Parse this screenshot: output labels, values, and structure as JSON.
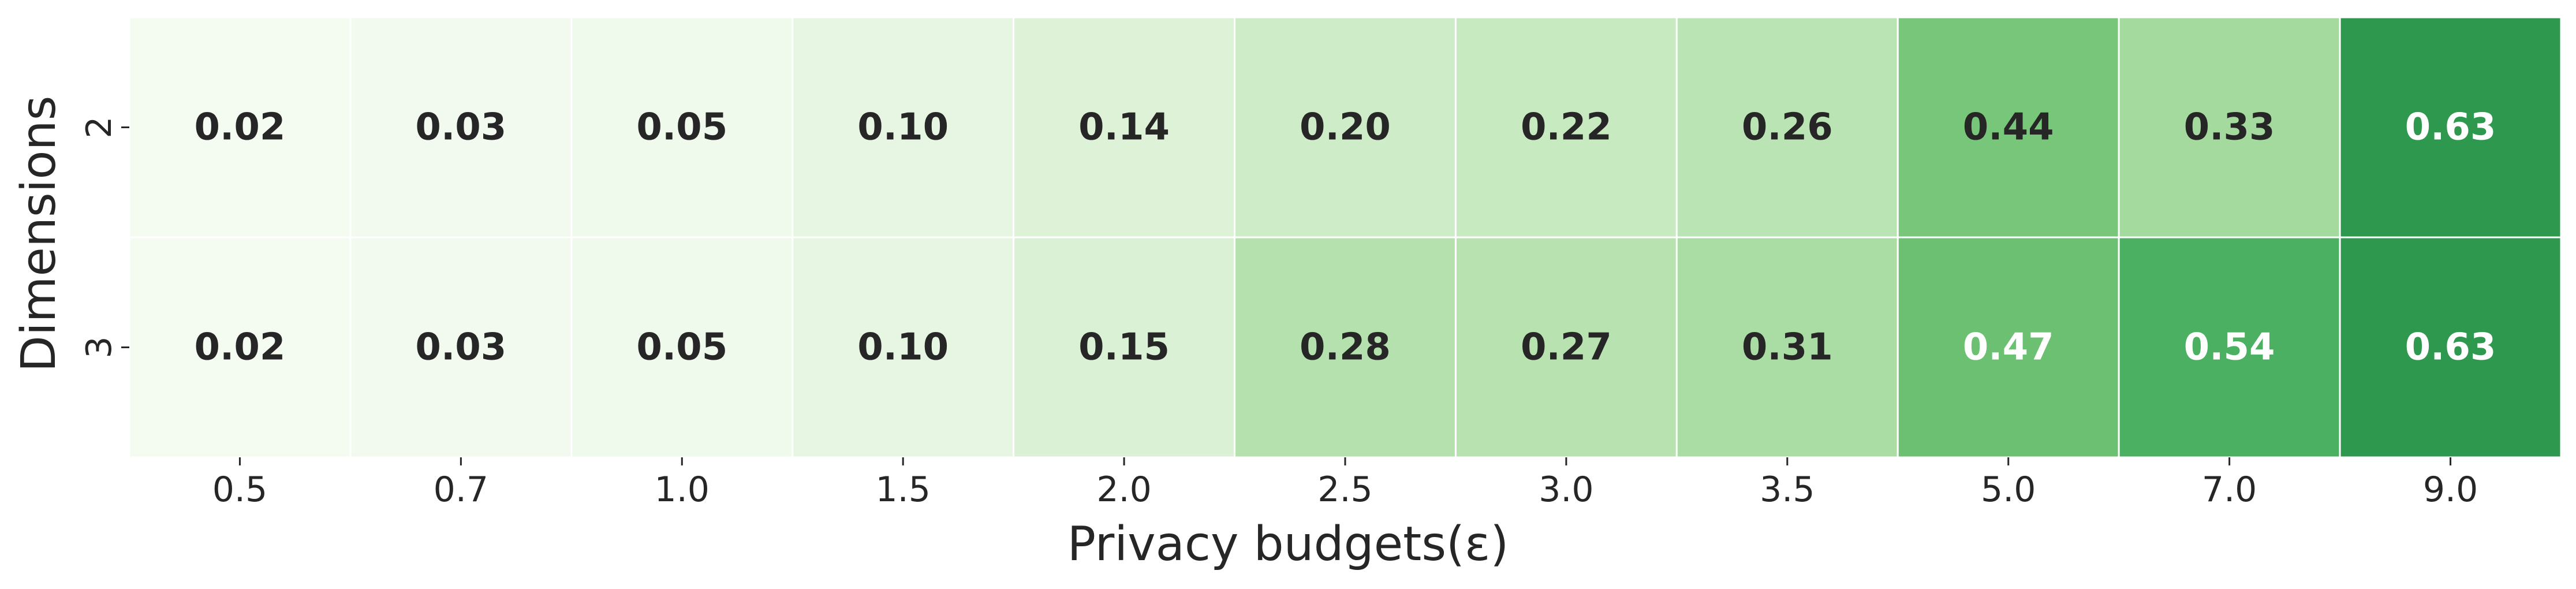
{
  "chart_data": {
    "type": "heatmap",
    "title": "",
    "xlabel": "Privacy budgets(ε)",
    "ylabel": "Dimensions",
    "x_categories": [
      "0.5",
      "0.7",
      "1.0",
      "1.5",
      "2.0",
      "2.5",
      "3.0",
      "3.5",
      "5.0",
      "7.0",
      "9.0"
    ],
    "y_categories": [
      "2",
      "3"
    ],
    "values": [
      [
        0.02,
        0.03,
        0.05,
        0.1,
        0.14,
        0.2,
        0.22,
        0.26,
        0.44,
        0.33,
        0.63
      ],
      [
        0.02,
        0.03,
        0.05,
        0.1,
        0.15,
        0.28,
        0.27,
        0.31,
        0.47,
        0.54,
        0.63
      ]
    ],
    "value_format_decimals": 2,
    "colormap": "Greens",
    "color_range": [
      0.0,
      0.9
    ],
    "light_text_color": "#ffffff",
    "dark_text_color": "#262626",
    "grid": false,
    "colorbar": false
  }
}
